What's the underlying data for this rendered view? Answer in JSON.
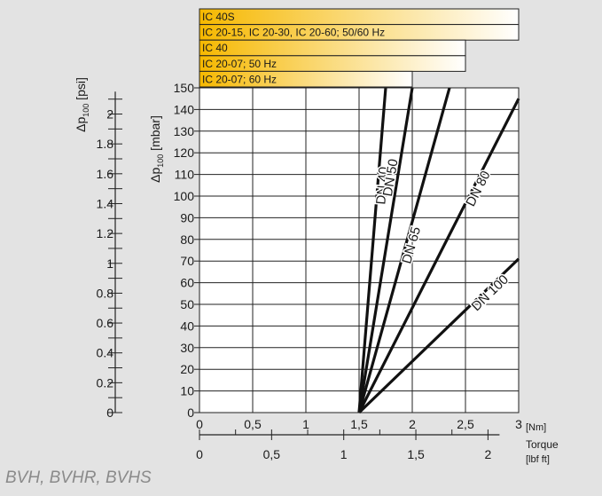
{
  "chart_data": {
    "type": "line",
    "footer": "BVH, BVHR, BVHS",
    "x_axis_nm": {
      "ticks": [
        "0",
        "0,5",
        "1",
        "1,5",
        "2",
        "2,5",
        "3"
      ],
      "tick_values": [
        0,
        0.5,
        1,
        1.5,
        2,
        2.5,
        3
      ],
      "range": [
        0,
        3
      ],
      "unit": "[Nm]"
    },
    "x_axis_lbf": {
      "ticks": [
        "0",
        "0,5",
        "1",
        "1,5",
        "2"
      ],
      "tick_values": [
        0,
        0.5,
        1,
        1.5,
        2
      ],
      "label": "Torque",
      "unit": "[lbf ft]"
    },
    "y_axis_mbar": {
      "label_main": "Δp",
      "label_sub": "100",
      "label_unit": " [mbar]",
      "ticks": [
        "0",
        "10",
        "20",
        "30",
        "40",
        "50",
        "60",
        "70",
        "80",
        "90",
        "100",
        "110",
        "120",
        "130",
        "140",
        "150"
      ],
      "range": [
        0,
        150
      ]
    },
    "y_axis_psi": {
      "label_main": "Δp",
      "label_sub": "100",
      "label_unit": " [psi]",
      "ticks": [
        "0",
        "0.2",
        "0.4",
        "0.6",
        "0.8",
        "1",
        "1.2",
        "1.4",
        "1.6",
        "1.8",
        "2"
      ],
      "tick_values": [
        0,
        0.2,
        0.4,
        0.6,
        0.8,
        1,
        1.2,
        1.4,
        1.6,
        1.8,
        2
      ]
    },
    "series": [
      {
        "name": "DN 40",
        "x": [
          1.5,
          1.75
        ],
        "y": [
          0,
          150
        ]
      },
      {
        "name": "DN 50",
        "x": [
          1.5,
          2.0
        ],
        "y": [
          0,
          150
        ]
      },
      {
        "name": "DN 65",
        "x": [
          1.5,
          2.35
        ],
        "y": [
          0,
          150
        ]
      },
      {
        "name": "DN 80",
        "x": [
          1.5,
          3.0
        ],
        "y": [
          0,
          145
        ]
      },
      {
        "name": "DN 100",
        "x": [
          1.5,
          3.0
        ],
        "y": [
          0,
          71
        ]
      }
    ],
    "ranges": [
      {
        "label": "IC 40S",
        "end": 3.0
      },
      {
        "label": "IC 20-15, IC 20-30, IC 20-60; 50/60 Hz",
        "end": 3.0
      },
      {
        "label": "IC 40",
        "end": 2.5
      },
      {
        "label": "IC 20-07; 50 Hz",
        "end": 2.5
      },
      {
        "label": "IC 20-07; 60 Hz",
        "end": 2.0
      }
    ],
    "colors": {
      "bar_start": "#f6b800",
      "bar_end": "#ffffff",
      "line": "#111111",
      "grid": "#222222",
      "plot_bg": "#ffffff",
      "page_bg": "#e3e3e3"
    }
  }
}
